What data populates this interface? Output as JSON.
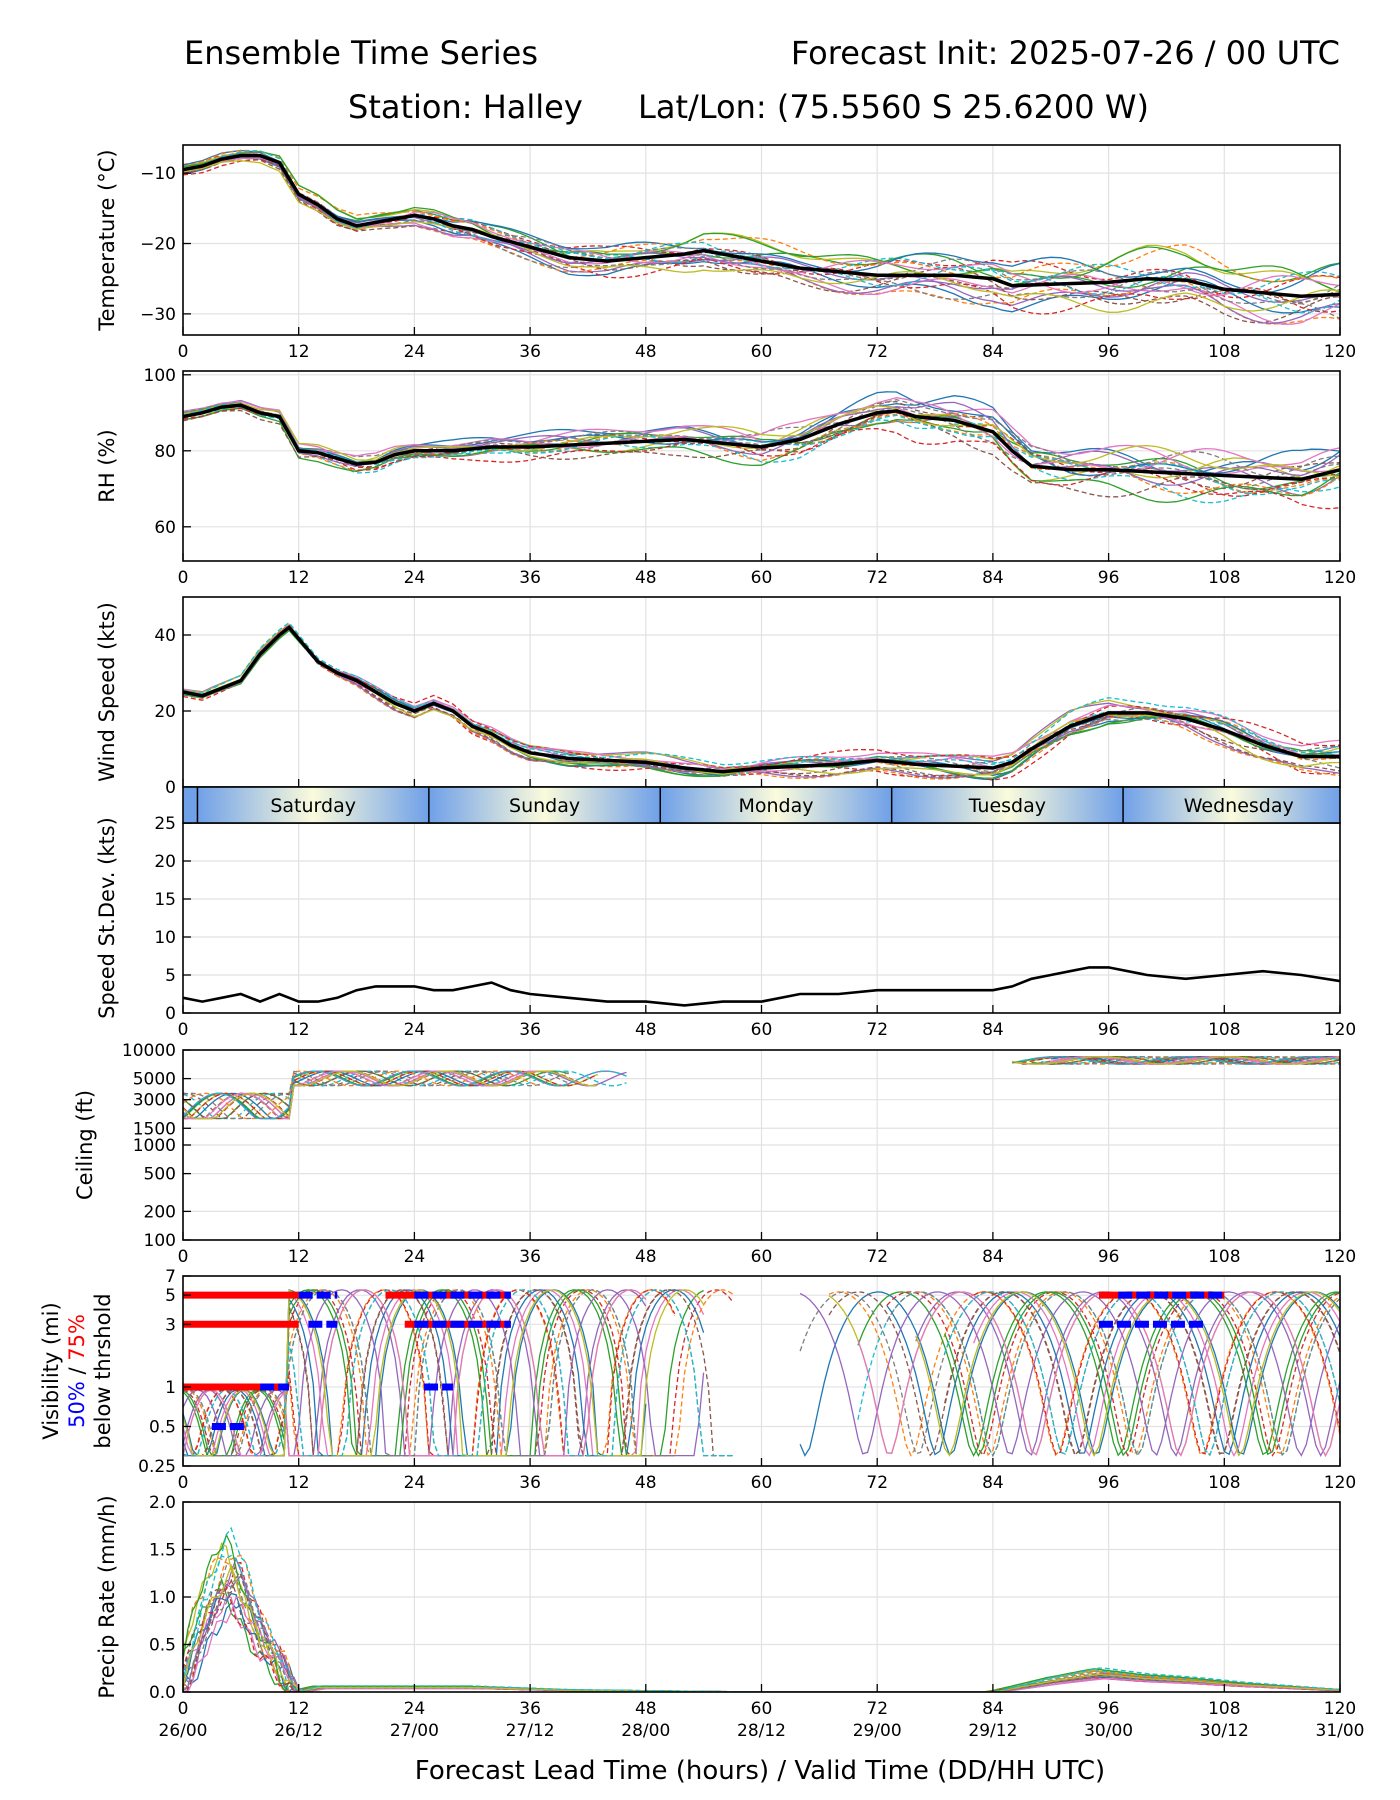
{
  "header": {
    "title_left": "Ensemble Time Series",
    "title_right": "Forecast Init: 2025-07-26 / 00 UTC",
    "station": "Station: Halley",
    "latlon": "Lat/Lon: (75.5560 S 25.6200 W)"
  },
  "x_axis": {
    "hour_ticks": [
      "0",
      "12",
      "24",
      "36",
      "48",
      "60",
      "72",
      "84",
      "96",
      "108",
      "120"
    ],
    "valid_ticks": [
      "26/00",
      "26/12",
      "27/00",
      "27/12",
      "28/00",
      "28/12",
      "29/00",
      "29/12",
      "30/00",
      "30/12",
      "31/00"
    ],
    "label": "Forecast Lead Time (hours) / Valid Time (DD/HH UTC)",
    "range": [
      0,
      120
    ]
  },
  "day_band": {
    "days": [
      "Saturday",
      "Sunday",
      "Monday",
      "Tuesday",
      "Wednesday"
    ],
    "colors": [
      "#6fa0e8",
      "#fbfbdc"
    ]
  },
  "chart_data": [
    {
      "type": "line",
      "ylabel": "Temperature (°C)",
      "ylim": [
        -33,
        -6
      ],
      "yticks": [
        -10,
        -20,
        -30
      ],
      "ytick_labels": [
        "−10",
        "−20",
        "−30"
      ],
      "grid": true,
      "series": [
        {
          "kind": "ensemble-mean",
          "x": [
            0,
            2,
            4,
            6,
            8,
            10,
            12,
            14,
            16,
            18,
            20,
            22,
            24,
            26,
            28,
            30,
            32,
            36,
            40,
            44,
            48,
            52,
            54,
            56,
            60,
            64,
            68,
            72,
            76,
            80,
            84,
            86,
            90,
            96,
            100,
            104,
            108,
            112,
            116,
            120
          ],
          "y": [
            -9.5,
            -9,
            -8,
            -7.5,
            -7.5,
            -8.5,
            -13,
            -14.5,
            -16.5,
            -17.5,
            -17,
            -16.5,
            -16,
            -16.5,
            -17.5,
            -18,
            -19,
            -20.5,
            -22,
            -22.5,
            -22,
            -21.5,
            -21,
            -21.5,
            -22.5,
            -23.5,
            -24,
            -24.5,
            -24.5,
            -24.5,
            -25,
            -26,
            -25.8,
            -25.5,
            -25,
            -25.2,
            -26.5,
            -27,
            -27.5,
            -27.2
          ]
        }
      ]
    },
    {
      "type": "line",
      "ylabel": "RH (%)",
      "ylim": [
        51,
        101
      ],
      "yticks": [
        60,
        80,
        100
      ],
      "ytick_labels": [
        "60",
        "80",
        "100"
      ],
      "grid": true,
      "series": [
        {
          "kind": "ensemble-mean",
          "x": [
            0,
            2,
            4,
            6,
            8,
            10,
            12,
            14,
            16,
            18,
            20,
            22,
            24,
            28,
            32,
            36,
            40,
            44,
            48,
            52,
            56,
            60,
            64,
            68,
            72,
            74,
            76,
            80,
            84,
            86,
            88,
            92,
            96,
            100,
            104,
            108,
            112,
            116,
            120
          ],
          "y": [
            89,
            90,
            91.5,
            92,
            90,
            89,
            80,
            79.5,
            78,
            76.5,
            77,
            79,
            80,
            80,
            81,
            81,
            81.5,
            82,
            82.5,
            83,
            82,
            81,
            83,
            87,
            90,
            90.5,
            89,
            88,
            85,
            80,
            76,
            75,
            75,
            74.5,
            74,
            73.5,
            73,
            72.5,
            75
          ]
        }
      ]
    },
    {
      "type": "line",
      "ylabel": "Wind Speed (kts)",
      "ylim": [
        0,
        50
      ],
      "yticks": [
        0,
        20,
        40
      ],
      "ytick_labels": [
        "0",
        "20",
        "40"
      ],
      "grid": true,
      "series": [
        {
          "kind": "ensemble-mean",
          "x": [
            0,
            2,
            4,
            6,
            8,
            10,
            11,
            12,
            14,
            16,
            18,
            20,
            22,
            24,
            26,
            28,
            30,
            32,
            34,
            36,
            40,
            44,
            48,
            52,
            56,
            60,
            64,
            68,
            72,
            76,
            80,
            84,
            86,
            88,
            92,
            96,
            100,
            104,
            108,
            112,
            116,
            120
          ],
          "y": [
            25,
            24,
            26,
            28,
            35,
            40,
            42,
            39,
            33,
            30,
            28,
            25,
            22,
            20,
            22,
            20,
            16,
            14,
            11,
            9,
            7.5,
            7,
            6.5,
            5,
            4,
            5,
            5.5,
            6,
            7,
            6,
            5.5,
            5,
            6.5,
            10,
            16,
            19.5,
            19.5,
            18,
            15,
            11,
            8,
            8
          ]
        }
      ]
    },
    {
      "type": "line",
      "ylabel": "Speed St.Dev. (kts)",
      "ylim": [
        0,
        25
      ],
      "yticks": [
        0,
        5,
        10,
        15,
        20,
        25
      ],
      "ytick_labels": [
        "0",
        "5",
        "10",
        "15",
        "20",
        "25"
      ],
      "grid": true,
      "series": [
        {
          "kind": "stdev",
          "x": [
            0,
            2,
            4,
            6,
            8,
            10,
            12,
            14,
            16,
            18,
            20,
            22,
            24,
            26,
            28,
            30,
            32,
            34,
            36,
            40,
            44,
            48,
            52,
            56,
            60,
            64,
            68,
            72,
            76,
            80,
            84,
            86,
            88,
            90,
            92,
            94,
            96,
            100,
            104,
            108,
            112,
            116,
            120
          ],
          "y": [
            2,
            1.5,
            2,
            2.5,
            1.5,
            2.5,
            1.5,
            1.5,
            2,
            3,
            3.5,
            3.5,
            3.5,
            3,
            3,
            3.5,
            4,
            3,
            2.5,
            2,
            1.5,
            1.5,
            1,
            1.5,
            1.5,
            2.5,
            2.5,
            3,
            3,
            3,
            3,
            3.5,
            4.5,
            5,
            5.5,
            6,
            6,
            5,
            4.5,
            5,
            5.5,
            5,
            4.2
          ]
        }
      ]
    },
    {
      "type": "line",
      "ylabel": "Ceiling (ft)",
      "scale": "log",
      "ylim": [
        100,
        10000
      ],
      "yticks": [
        100,
        200,
        500,
        1000,
        1500,
        3000,
        5000,
        10000
      ],
      "ytick_labels": [
        "100",
        "200",
        "500",
        "1000",
        "1500",
        "3000",
        "5000",
        "10000"
      ],
      "grid": true
    },
    {
      "type": "line",
      "ylabel": "Visibility (mi)",
      "ylabel_pct50": "50%",
      "ylabel_sep": " / ",
      "ylabel_pct75": "75%",
      "ylabel_below": "below thrshold",
      "scale": "log",
      "ylim": [
        0.25,
        7
      ],
      "yticks": [
        0.25,
        0.5,
        1,
        3,
        5,
        7
      ],
      "ytick_labels": [
        "0.25",
        "0.5",
        "1",
        "3",
        "5",
        "7"
      ],
      "grid": true,
      "thresholds": [
        {
          "level": 5,
          "pct75": [
            [
              0,
              12
            ],
            [
              21,
              34
            ],
            [
              95,
              108
            ]
          ],
          "pct50": [
            [
              12,
              16
            ],
            [
              24,
              34
            ],
            [
              97,
              108
            ]
          ]
        },
        {
          "level": 3,
          "pct75": [
            [
              0,
              12
            ],
            [
              23,
              34
            ]
          ],
          "pct50": [
            [
              13,
              16
            ],
            [
              24,
              34
            ],
            [
              95,
              106
            ]
          ]
        },
        {
          "level": 1,
          "pct75": [
            [
              0,
              11
            ]
          ],
          "pct50": [
            [
              8,
              11
            ],
            [
              25,
              28
            ]
          ]
        },
        {
          "level": 0.5,
          "pct50": [
            [
              3,
              6.5
            ]
          ]
        }
      ]
    },
    {
      "type": "line",
      "ylabel": "Precip Rate (mm/h)",
      "ylim": [
        0,
        2
      ],
      "yticks": [
        0,
        0.5,
        1,
        1.5,
        2
      ],
      "ytick_labels": [
        "0.0",
        "0.5",
        "1.0",
        "1.5",
        "2.0"
      ],
      "grid": true,
      "series": [
        {
          "kind": "peak-member",
          "x": [
            0,
            2,
            4,
            5,
            6,
            8,
            10,
            11,
            12,
            14,
            20,
            30,
            40,
            50,
            60,
            72,
            84,
            90,
            95,
            100,
            105,
            110,
            120
          ],
          "y": [
            0.1,
            0.8,
            1.2,
            1.35,
            1.1,
            0.6,
            0.3,
            0.05,
            0.01,
            0.05,
            0.05,
            0.05,
            0.02,
            0.01,
            0,
            0,
            0,
            0.12,
            0.2,
            0.15,
            0.12,
            0.08,
            0.02
          ]
        }
      ]
    }
  ],
  "palette": [
    "#1f77b4",
    "#ff7f0e",
    "#2ca02c",
    "#d62728",
    "#9467bd",
    "#8c564b",
    "#e377c2",
    "#7f7f7f",
    "#bcbd22",
    "#17becf"
  ]
}
